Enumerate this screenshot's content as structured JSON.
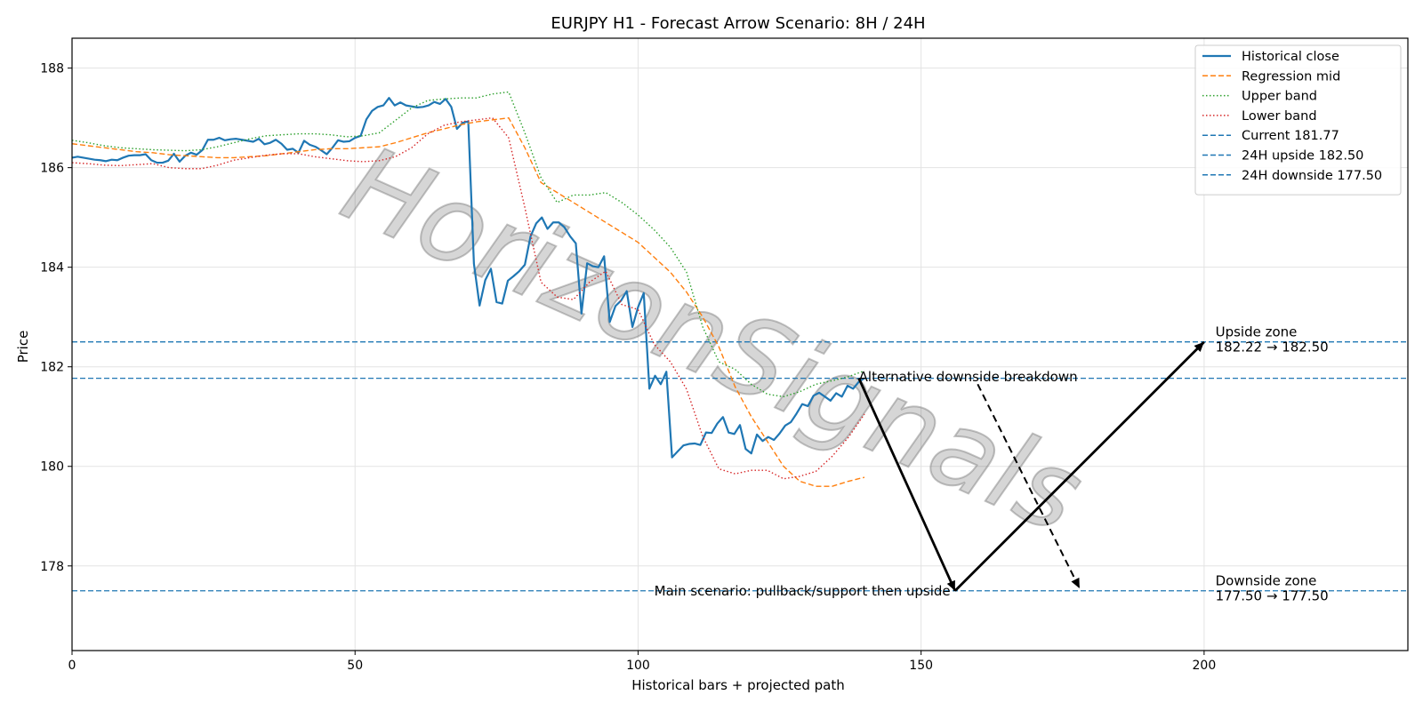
{
  "chart_data": {
    "type": "line",
    "title": "EURJPY H1 - Forecast Arrow Scenario: 8H / 24H",
    "xlabel": "Historical bars + projected path",
    "ylabel": "Price",
    "xlim": [
      0,
      236
    ],
    "ylim": [
      176.3,
      188.6
    ],
    "x_ticks": [
      0,
      50,
      100,
      150,
      200
    ],
    "y_ticks": [
      178,
      180,
      182,
      184,
      186,
      188
    ],
    "grid": true,
    "legend_position": "top-right",
    "watermark": "HorizonSignals",
    "series": [
      {
        "name": "Historical close",
        "color": "#1f77b4",
        "style": "solid",
        "x_start": 0,
        "values": [
          186.2,
          186.22,
          186.2,
          186.18,
          186.16,
          186.15,
          186.13,
          186.16,
          186.15,
          186.2,
          186.24,
          186.25,
          186.25,
          186.27,
          186.15,
          186.1,
          186.1,
          186.14,
          186.28,
          186.12,
          186.24,
          186.3,
          186.26,
          186.35,
          186.56,
          186.56,
          186.6,
          186.55,
          186.57,
          186.58,
          186.56,
          186.54,
          186.52,
          186.58,
          186.47,
          186.5,
          186.56,
          186.48,
          186.36,
          186.38,
          186.3,
          186.54,
          186.46,
          186.42,
          186.35,
          186.27,
          186.4,
          186.55,
          186.52,
          186.53,
          186.6,
          186.64,
          186.97,
          187.14,
          187.22,
          187.25,
          187.4,
          187.25,
          187.31,
          187.25,
          187.23,
          187.21,
          187.22,
          187.25,
          187.32,
          187.28,
          187.38,
          187.22,
          186.78,
          186.9,
          186.93,
          184.07,
          183.23,
          183.74,
          183.97,
          183.3,
          183.27,
          183.73,
          183.82,
          183.92,
          184.05,
          184.62,
          184.88,
          185.0,
          184.77,
          184.9,
          184.9,
          184.8,
          184.62,
          184.48,
          183.07,
          184.08,
          184.02,
          184.0,
          184.22,
          182.9,
          183.22,
          183.33,
          183.52,
          182.8,
          183.2,
          183.48,
          181.56,
          181.82,
          181.65,
          181.9,
          180.18,
          180.3,
          180.42,
          180.45,
          180.46,
          180.43,
          180.68,
          180.67,
          180.86,
          180.99,
          180.68,
          180.65,
          180.83,
          180.35,
          180.26,
          180.64,
          180.51,
          180.59,
          180.53,
          180.66,
          180.82,
          180.89,
          181.06,
          181.25,
          181.21,
          181.42,
          181.48,
          181.4,
          181.32,
          181.47,
          181.4,
          181.62,
          181.56,
          181.7,
          181.77
        ]
      },
      {
        "name": "Regression mid",
        "color": "#ff7f0e",
        "style": "dashed",
        "x_start": 0,
        "values": [
          186.48,
          186.44,
          186.4,
          186.36,
          186.32,
          186.3,
          186.26,
          186.24,
          186.22,
          186.2,
          186.2,
          186.22,
          186.24,
          186.28,
          186.32,
          186.36,
          186.38,
          186.38,
          186.4,
          186.42,
          186.5,
          186.6,
          186.7,
          186.78,
          186.86,
          186.92,
          186.96,
          187.0,
          186.4,
          185.7,
          185.5,
          185.3,
          185.1,
          184.9,
          184.7,
          184.5,
          184.2,
          183.9,
          183.5,
          183.0,
          182.4,
          181.6,
          181.0,
          180.5,
          180.0,
          179.7,
          179.6,
          179.6,
          179.7,
          179.78
        ]
      },
      {
        "name": "Upper band",
        "color": "#2ca02c",
        "style": "dotted",
        "x_start": 0,
        "values": [
          186.55,
          186.5,
          186.44,
          186.4,
          186.38,
          186.36,
          186.35,
          186.34,
          186.36,
          186.42,
          186.5,
          186.58,
          186.64,
          186.66,
          186.68,
          186.68,
          186.66,
          186.62,
          186.64,
          186.7,
          186.95,
          187.2,
          187.35,
          187.38,
          187.4,
          187.4,
          187.48,
          187.52,
          186.7,
          185.8,
          185.3,
          185.45,
          185.45,
          185.5,
          185.3,
          185.05,
          184.75,
          184.4,
          183.9,
          182.8,
          182.1,
          181.95,
          181.65,
          181.45,
          181.4,
          181.5,
          181.65,
          181.72,
          181.8,
          181.92
        ]
      },
      {
        "name": "Lower band",
        "color": "#d62728",
        "style": "dotted",
        "x_start": 0,
        "values": [
          186.1,
          186.08,
          186.05,
          186.04,
          186.06,
          186.08,
          186.0,
          185.98,
          185.98,
          186.05,
          186.15,
          186.2,
          186.25,
          186.28,
          186.28,
          186.22,
          186.18,
          186.14,
          186.12,
          186.14,
          186.22,
          186.4,
          186.68,
          186.85,
          186.92,
          186.96,
          187.0,
          186.6,
          185.2,
          183.7,
          183.4,
          183.35,
          183.7,
          183.92,
          183.25,
          183.15,
          182.45,
          182.1,
          181.55,
          180.6,
          179.95,
          179.85,
          179.92,
          179.92,
          179.75,
          179.8,
          179.9,
          180.2,
          180.58,
          181.05
        ]
      }
    ],
    "series_x_spacing": 2.857,
    "horizontal_lines": [
      {
        "name": "Current 181.77",
        "value": 181.77,
        "color": "#1f77b4",
        "style": "dashed"
      },
      {
        "name": "24H upside 182.50",
        "value": 182.5,
        "color": "#1f77b4",
        "style": "dashed"
      },
      {
        "name": "24H downside 177.50",
        "value": 177.5,
        "color": "#1f77b4",
        "style": "dashed"
      }
    ],
    "arrows": [
      {
        "from": [
          139,
          181.77
        ],
        "to": [
          156,
          177.5
        ],
        "color": "#000000",
        "style": "solid"
      },
      {
        "from": [
          156,
          177.5
        ],
        "to": [
          200,
          182.5
        ],
        "color": "#000000",
        "style": "solid"
      },
      {
        "from": [
          160,
          181.65
        ],
        "to": [
          178,
          177.55
        ],
        "color": "#000000",
        "style": "dashed"
      }
    ],
    "annotations": [
      {
        "text": "Alternative downside breakdown",
        "x": 139,
        "y": 181.8,
        "anchor": "start"
      },
      {
        "text": "Main scenario: pullback/support then upside",
        "x": 155.5,
        "y": 177.5,
        "anchor": "end"
      },
      {
        "text": "Upside zone",
        "x": 202,
        "y": 182.7,
        "anchor": "start"
      },
      {
        "text": "182.22 → 182.50",
        "x": 202,
        "y": 182.4,
        "anchor": "start"
      },
      {
        "text": "Downside zone",
        "x": 202,
        "y": 177.7,
        "anchor": "start"
      },
      {
        "text": "177.50 → 177.50",
        "x": 202,
        "y": 177.4,
        "anchor": "start"
      }
    ]
  }
}
